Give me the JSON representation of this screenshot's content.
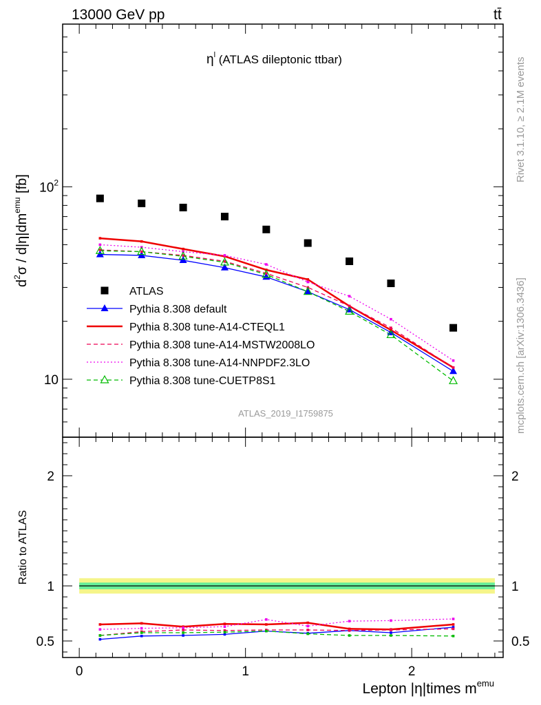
{
  "header": {
    "energy_label": "13000 GeV pp",
    "process_label": "tt̄"
  },
  "side_labels": {
    "rivet": "Rivet 3.1.10, ≥ 2.1M events",
    "mcplots": "mcplots.cern.ch [arXiv:1306.3436]"
  },
  "chart_data": [
    {
      "type": "line",
      "title": "η (ATLAS dileptonic ttbar)",
      "title_main": "η",
      "title_sup": "l",
      "title_rest": " (ATLAS dileptonic ttbar)",
      "watermark": "ATLAS_2019_I1759875",
      "ylabel": "d²σ / d|η|dm^emu [fb]",
      "yscale": "log",
      "ylim": [
        5,
        700
      ],
      "xlim": [
        -0.1,
        2.55
      ],
      "y_tick_labels": [
        {
          "value": 10,
          "base": "10",
          "exp": ""
        },
        {
          "value": 100,
          "base": "10",
          "exp": "2"
        }
      ],
      "legend_placement": "center-left",
      "x": [
        0.125,
        0.375,
        0.625,
        0.875,
        1.125,
        1.375,
        1.625,
        1.875,
        2.25
      ],
      "series": [
        {
          "name": "ATLAS",
          "color": "#000000",
          "style": "marker",
          "marker": "square",
          "values": [
            87,
            82,
            78,
            70,
            60,
            51,
            41,
            31.5,
            18.5
          ]
        },
        {
          "name": "Pythia 8.308 default",
          "color": "#0000ff",
          "style": "solid",
          "marker": "triangle",
          "values": [
            44.5,
            44,
            41.5,
            38,
            34,
            28.5,
            23,
            17.5,
            11
          ]
        },
        {
          "name": "Pythia 8.308 tune-A14-CTEQL1",
          "color": "#ee0000",
          "style": "solid-thick",
          "marker": "none",
          "values": [
            54,
            52,
            47.5,
            43.5,
            37,
            33,
            24,
            18,
            11.5
          ]
        },
        {
          "name": "Pythia 8.308 tune-A14-MSTW2008LO",
          "color": "#ee0055",
          "style": "dashed",
          "marker": "none",
          "values": [
            47,
            46,
            44,
            41,
            35.5,
            30,
            24,
            18.5,
            11.5
          ]
        },
        {
          "name": "Pythia 8.308 tune-A14-NNPDF2.3LO",
          "color": "#ee00ee",
          "style": "dotted",
          "marker": "none",
          "values": [
            50,
            48.5,
            46,
            44,
            39.5,
            32,
            27,
            20.5,
            12.5
          ]
        },
        {
          "name": "Pythia 8.308 tune-CUETP8S1",
          "color": "#00bb00",
          "style": "dashed",
          "marker": "open-triangle",
          "values": [
            46.5,
            46,
            43.5,
            40.5,
            35,
            28.5,
            22.5,
            17,
            9.8
          ]
        }
      ]
    },
    {
      "type": "line",
      "ylabel": "Ratio to ATLAS",
      "xlabel_main": "Lepton |η|times m",
      "xlabel_sup": "emu",
      "ylim": [
        0.35,
        2.35
      ],
      "xlim": [
        -0.1,
        2.55
      ],
      "y_tick_labels": [
        "0.5",
        "1",
        "2"
      ],
      "y_tick_values": [
        0.5,
        1,
        2
      ],
      "x_tick_labels": [
        "0",
        "1",
        "2"
      ],
      "x_tick_values": [
        0,
        1,
        2
      ],
      "band": {
        "x_range": [
          0,
          2.5
        ],
        "inner": [
          0.97,
          1.03
        ],
        "outer": [
          0.93,
          1.07
        ],
        "inner_color": "#66ee99",
        "outer_color": "#f5f58a"
      },
      "x": [
        0.125,
        0.375,
        0.625,
        0.875,
        1.125,
        1.375,
        1.625,
        1.875,
        2.25
      ],
      "series": [
        {
          "name": "Pythia 8.308 default",
          "color": "#0000ff",
          "style": "solid",
          "values": [
            0.515,
            0.545,
            0.55,
            0.56,
            0.59,
            0.57,
            0.595,
            0.575,
            0.625
          ]
        },
        {
          "name": "Pythia 8.308 tune-A14-CTEQL1",
          "color": "#ee0000",
          "style": "solid-thick",
          "values": [
            0.65,
            0.66,
            0.63,
            0.655,
            0.65,
            0.665,
            0.61,
            0.605,
            0.65
          ]
        },
        {
          "name": "Pythia 8.308 tune-A14-MSTW2008LO",
          "color": "#ee0055",
          "style": "dashed",
          "values": [
            0.55,
            0.585,
            0.6,
            0.595,
            0.6,
            0.6,
            0.595,
            0.6,
            0.61
          ]
        },
        {
          "name": "Pythia 8.308 tune-A14-NNPDF2.3LO",
          "color": "#ee00ee",
          "style": "dotted",
          "values": [
            0.605,
            0.615,
            0.62,
            0.63,
            0.695,
            0.635,
            0.68,
            0.685,
            0.7
          ]
        },
        {
          "name": "Pythia 8.308 tune-CUETP8S1",
          "color": "#00bb00",
          "style": "dashed",
          "values": [
            0.55,
            0.575,
            0.575,
            0.58,
            0.59,
            0.565,
            0.55,
            0.55,
            0.545
          ]
        }
      ]
    }
  ]
}
